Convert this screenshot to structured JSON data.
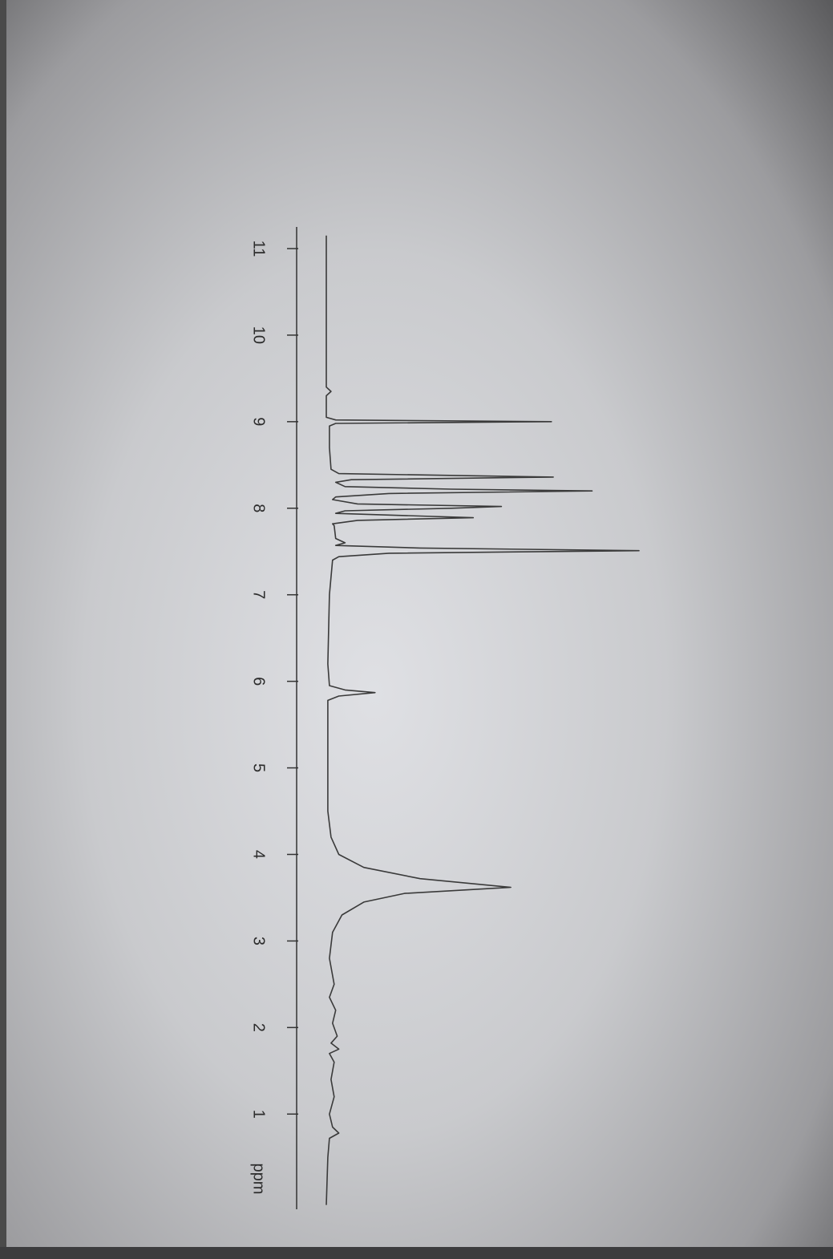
{
  "chart_data": {
    "type": "line",
    "x_label": "ppm",
    "x": [
      11.15,
      10.0,
      9.4,
      9.35,
      9.3,
      9.05,
      9.02,
      9.0,
      8.98,
      8.95,
      8.7,
      8.45,
      8.4,
      8.36,
      8.33,
      8.3,
      8.25,
      8.22,
      8.2,
      8.17,
      8.13,
      8.1,
      8.05,
      8.02,
      8.0,
      7.97,
      7.94,
      7.91,
      7.89,
      7.86,
      7.82,
      7.8,
      7.65,
      7.6,
      7.57,
      7.54,
      7.51,
      7.48,
      7.44,
      7.4,
      7.0,
      6.2,
      5.95,
      5.9,
      5.87,
      5.83,
      5.78,
      4.5,
      4.2,
      4.0,
      3.85,
      3.72,
      3.62,
      3.55,
      3.45,
      3.3,
      3.1,
      2.8,
      2.5,
      2.35,
      2.2,
      2.05,
      1.9,
      1.82,
      1.75,
      1.7,
      1.6,
      1.4,
      1.2,
      1.0,
      0.85,
      0.78,
      0.72,
      0.5,
      -0.05
    ],
    "series": [
      {
        "color": "#3a3a3a",
        "values": [
          0,
          0,
          0,
          1.5,
          0,
          0,
          3,
          72,
          3,
          1,
          1,
          1.5,
          4,
          72.6,
          8,
          3,
          6,
          40,
          85,
          20,
          3,
          2,
          10,
          56,
          40,
          6,
          3,
          30,
          47,
          10,
          2,
          2.5,
          3,
          6,
          3,
          30,
          100,
          20,
          4,
          2,
          1,
          0.5,
          1,
          6,
          15.6,
          4,
          0.5,
          0.5,
          1.5,
          4,
          12,
          30,
          59,
          25,
          12,
          5,
          2,
          1,
          2.5,
          1,
          3,
          2,
          3.5,
          1.5,
          4,
          1,
          2.5,
          1.5,
          2.5,
          1,
          2,
          4,
          1,
          0.5,
          0
        ]
      }
    ],
    "xlim": [
      11.25,
      -0.1
    ],
    "xticks": [
      11,
      10,
      9,
      8,
      7,
      6,
      5,
      4,
      3,
      2,
      1
    ],
    "ylim": [
      0,
      100
    ]
  }
}
